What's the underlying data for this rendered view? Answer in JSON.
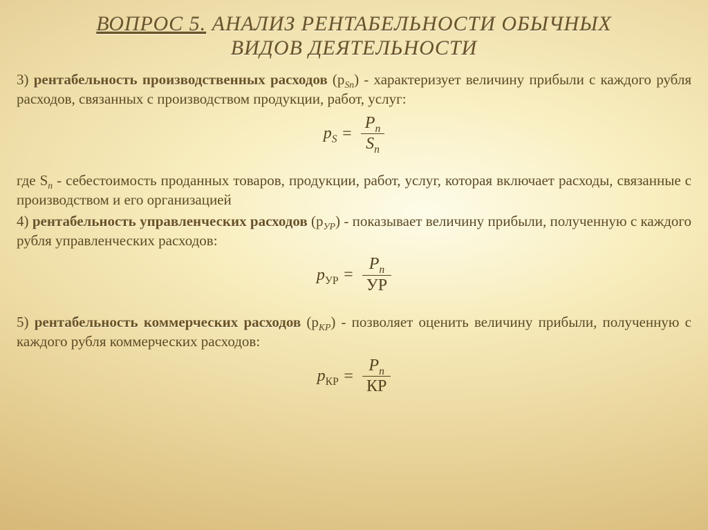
{
  "title": {
    "question": "ВОПРОС 5.",
    "rest_line1": " АНАЛИЗ РЕНТАБЕЛЬНОСТИ ОБЫЧНЫХ",
    "line2": "ВИДОВ ДЕЯТЕЛЬНОСТИ"
  },
  "item3": {
    "num": "3) ",
    "term": "рентабельность производственных расходов",
    "after": " (pSn) - характеризует величину прибыли с каждого рубля расходов, связанных с производством продукции, работ, услуг:"
  },
  "formula3": {
    "lhs": "pS",
    "eq": " = ",
    "num": "Pn",
    "den": "Sn"
  },
  "where3": "где Sп -  себестоимость проданных товаров, продукции, работ, услуг, которая включает расходы, связанные с производством и его организацией",
  "item4": {
    "num": "4) ",
    "term": "рентабельность управленческих расходов",
    "after": " (pУР) - показывает величину прибыли, полученную с каждого рубля управленческих расходов:"
  },
  "formula4": {
    "lhs": "pУР",
    "eq": " = ",
    "num": "Pn",
    "den": "УР"
  },
  "item5": {
    "num": "5) ",
    "term": "рентабельность коммерческих расходов",
    "after": " (pКР) - позволяет оценить величину прибыли, полученную с каждого рубля коммерческих расходов:"
  },
  "formula5": {
    "lhs": "pКР",
    "eq": " = ",
    "num": "Pn",
    "den": "КР"
  },
  "style": {
    "title_fontsize": 30,
    "body_fontsize": 21,
    "formula_fontsize": 24,
    "text_color": "#5c4a26",
    "title_color": "#6a5328",
    "formula_color": "#53421f",
    "bg_gradient_stops": [
      "#f6edc8",
      "#eede9e",
      "#cfa960"
    ]
  }
}
